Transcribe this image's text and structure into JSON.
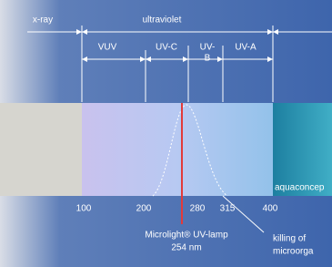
{
  "header": {
    "regions": [
      "x-ray",
      "ultraviolet"
    ]
  },
  "bands": [
    "VUV",
    "UV-C",
    "UV-",
    "B",
    "UV-A"
  ],
  "scale": [
    "100",
    "200",
    "280",
    "315",
    "400"
  ],
  "annotations": {
    "brand": "aquaconcep",
    "lamp": "Microlight® UV-lamp",
    "lamp_wavelength": "254 nm",
    "effect_1": "killing of",
    "effect_2": "microorga"
  }
}
